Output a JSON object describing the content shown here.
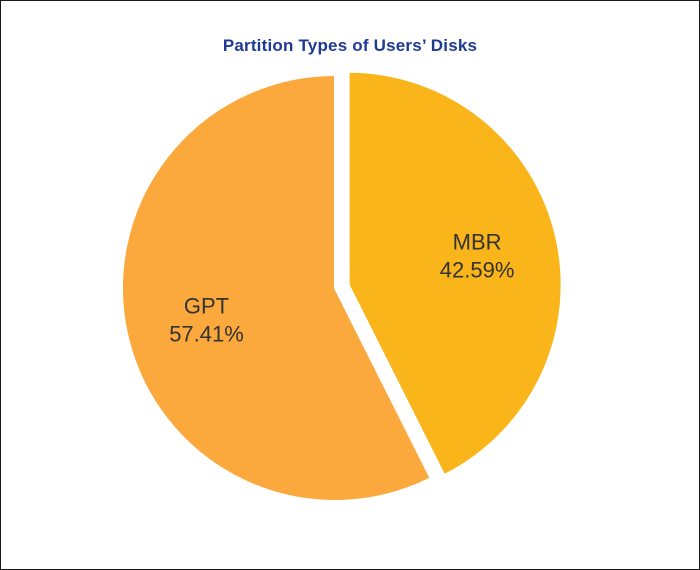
{
  "chart_data": {
    "type": "pie",
    "title": "Partition Types of Users’ Disks",
    "slices": [
      {
        "label": "MBR",
        "value": 42.59,
        "value_label": "42.59%",
        "color": "#f9b51a",
        "exploded": true
      },
      {
        "label": "GPT",
        "value": 57.41,
        "value_label": "57.41%",
        "color": "#fba83c",
        "exploded": false
      }
    ],
    "start_angle": "12 o'clock",
    "direction": "clockwise",
    "legend": "none"
  }
}
